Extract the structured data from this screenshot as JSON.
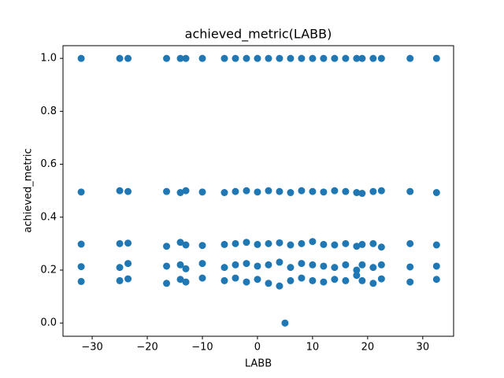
{
  "chart_data": {
    "type": "scatter",
    "title": "achieved_metric(LABB)",
    "xlabel": "LABB",
    "ylabel": "achieved_metric",
    "color": "#1f77b4",
    "grid": false,
    "xlim": [
      -35.3,
      35.6
    ],
    "ylim": [
      -0.05,
      1.048
    ],
    "xticks": [
      {
        "value": -30,
        "label": "−30"
      },
      {
        "value": -20,
        "label": "−20"
      },
      {
        "value": -10,
        "label": "−10"
      },
      0,
      10,
      20,
      30
    ],
    "yticks": [
      {
        "value": 0,
        "label": "0.0"
      },
      0.2,
      0.4,
      0.6,
      0.8,
      {
        "value": 1,
        "label": "1.0"
      }
    ],
    "x": [
      -32,
      -25,
      -23.5,
      -16.5,
      -14,
      -13,
      -10,
      -6,
      -4,
      -2,
      0,
      2,
      4,
      6,
      8,
      10,
      12,
      14,
      16,
      18,
      19,
      21,
      22.5,
      27.7,
      32.5,
      -32,
      -25,
      -23.5,
      -16.5,
      -14,
      -13,
      -10,
      -6,
      -4,
      -2,
      0,
      2,
      4,
      6,
      8,
      10,
      12,
      14,
      16,
      18,
      19,
      21,
      22.5,
      27.7,
      32.5,
      -32,
      -25,
      -23.5,
      -16.5,
      -14,
      -13,
      -10,
      -6,
      -4,
      -2,
      0,
      2,
      4,
      6,
      8,
      10,
      12,
      14,
      16,
      18,
      19,
      21,
      22.5,
      27.7,
      32.5,
      -32,
      -25,
      -23.5,
      -16.5,
      -14,
      -13,
      -10,
      -6,
      -4,
      -2,
      0,
      2,
      4,
      6,
      8,
      10,
      12,
      14,
      16,
      18,
      19,
      21,
      22.5,
      27.7,
      32.5,
      -32,
      -25,
      -23.5,
      -16.5,
      -14,
      -13,
      -10,
      -6,
      -4,
      -2,
      0,
      2,
      4,
      6,
      8,
      10,
      12,
      14,
      16,
      18,
      19,
      21,
      22.5,
      27.7,
      32.5,
      5
    ],
    "values": [
      1,
      1,
      1,
      1,
      1,
      1,
      1,
      1,
      1,
      1,
      1,
      1,
      1,
      1,
      1,
      1,
      1,
      1,
      1,
      1,
      1,
      1,
      1,
      1,
      1,
      0.495,
      0.5,
      0.497,
      0.497,
      0.493,
      0.5,
      0.495,
      0.493,
      0.497,
      0.5,
      0.495,
      0.5,
      0.497,
      0.493,
      0.5,
      0.497,
      0.495,
      0.5,
      0.497,
      0.493,
      0.49,
      0.497,
      0.5,
      0.497,
      0.493,
      0.298,
      0.3,
      0.302,
      0.29,
      0.305,
      0.295,
      0.293,
      0.297,
      0.3,
      0.305,
      0.297,
      0.3,
      0.303,
      0.295,
      0.3,
      0.308,
      0.297,
      0.295,
      0.3,
      0.29,
      0.297,
      0.3,
      0.287,
      0.3,
      0.295,
      0.213,
      0.21,
      0.225,
      0.215,
      0.22,
      0.205,
      0.225,
      0.21,
      0.22,
      0.225,
      0.215,
      0.22,
      0.23,
      0.21,
      0.225,
      0.22,
      0.215,
      0.21,
      0.22,
      0.2,
      0.22,
      0.21,
      0.22,
      0.212,
      0.215,
      0.157,
      0.16,
      0.167,
      0.15,
      0.165,
      0.155,
      0.17,
      0.16,
      0.17,
      0.155,
      0.165,
      0.15,
      0.14,
      0.16,
      0.17,
      0.16,
      0.155,
      0.165,
      0.16,
      0.18,
      0.16,
      0.15,
      0.167,
      0.155,
      0.165,
      0
    ]
  }
}
